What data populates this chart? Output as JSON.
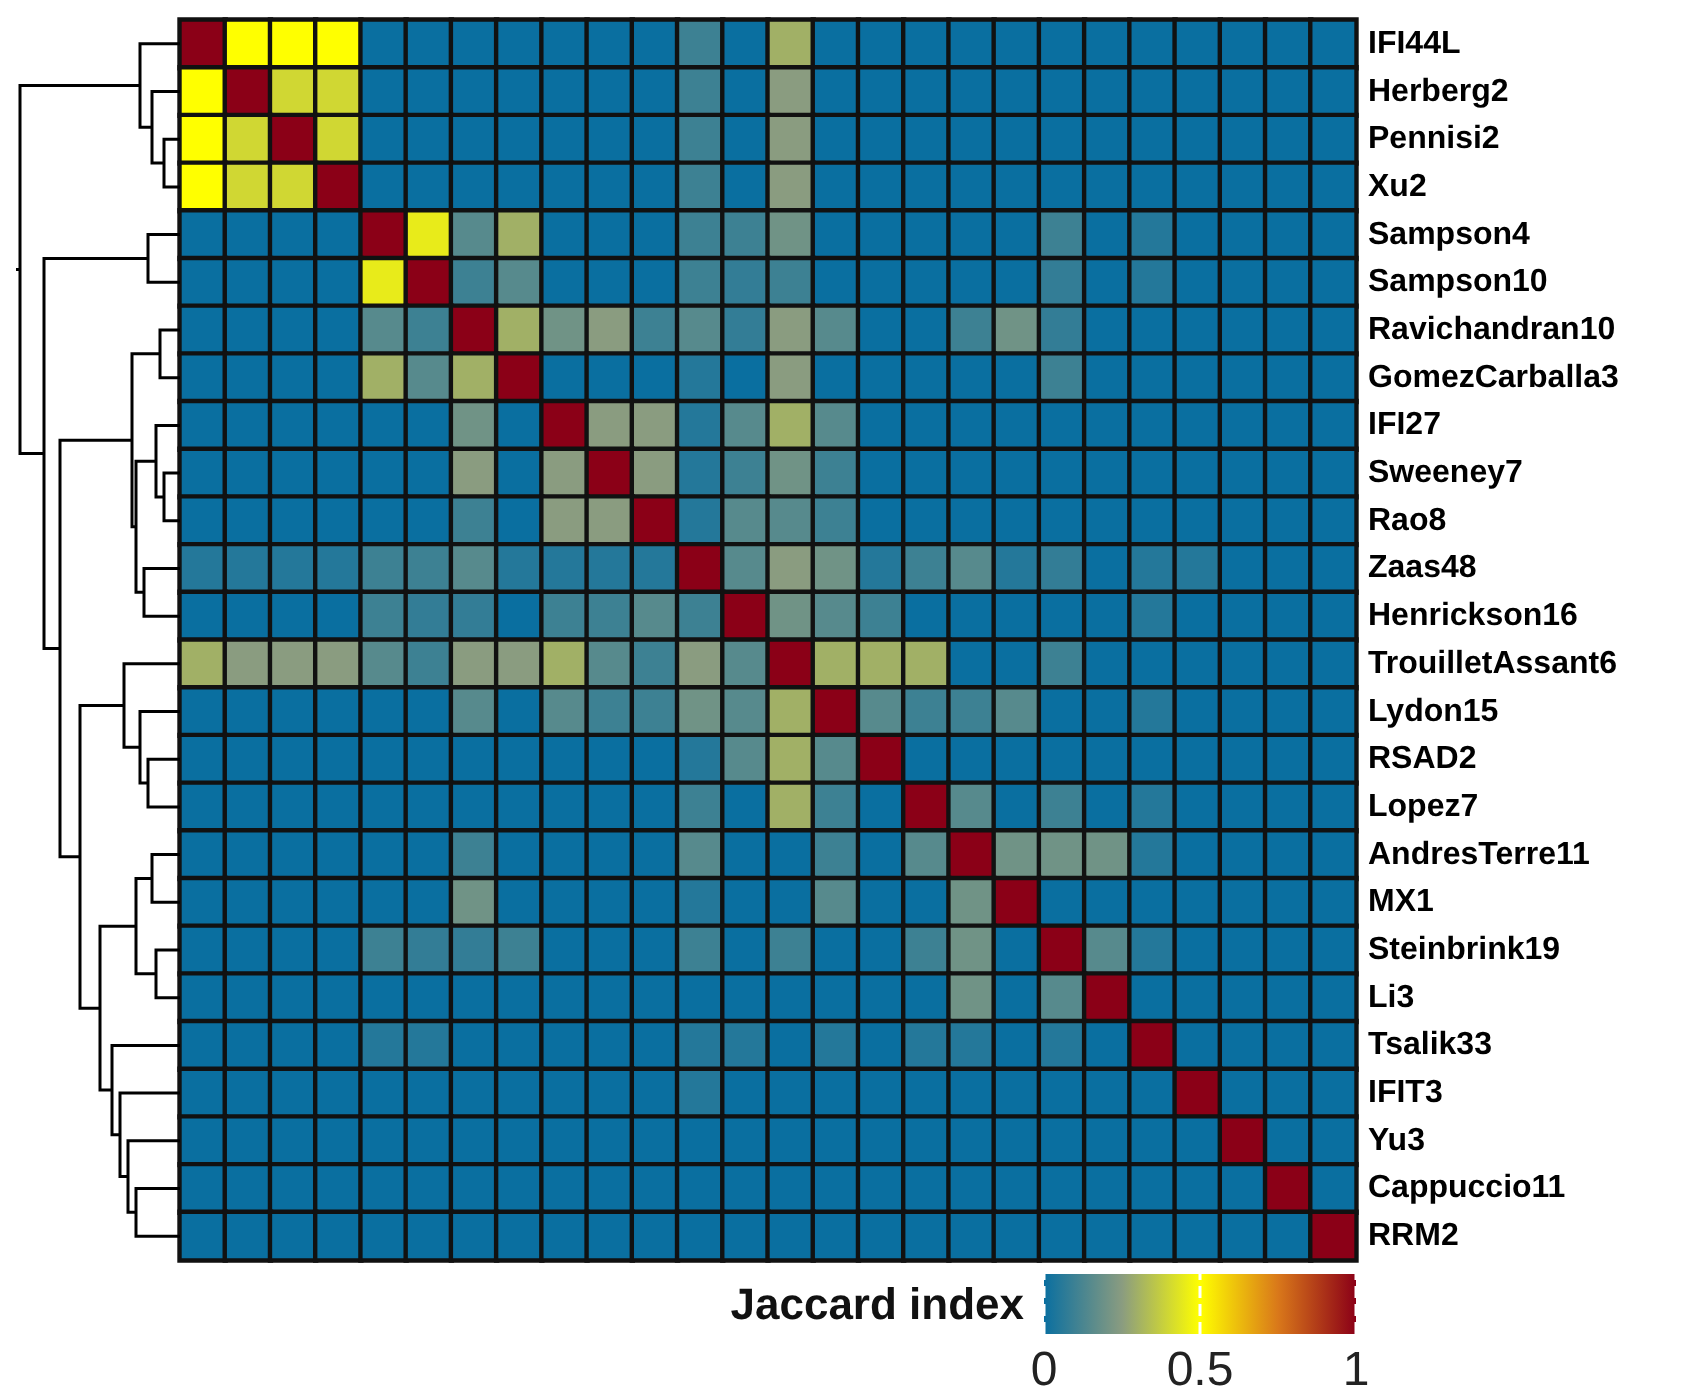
{
  "chart_data": {
    "type": "heatmap",
    "categories": [
      null,
      null,
      null,
      null,
      null,
      null,
      null,
      null,
      null,
      null,
      null,
      null,
      null,
      null,
      null,
      null,
      null,
      null,
      null,
      null,
      null,
      null,
      null,
      null,
      null,
      null
    ],
    "y_categories": [
      "IFI44L",
      "Herberg2",
      "Pennisi2",
      "Xu2",
      "Sampson4",
      "Sampson10",
      "Ravichandran10",
      "GomezCarballa3",
      "IFI27",
      "Sweeney7",
      "Rao8",
      "Zaas48",
      "Henrickson16",
      "TrouilletAssant6",
      "Lydon15",
      "RSAD2",
      "Lopez7",
      "AndresTerre11",
      "MX1",
      "Steinbrink19",
      "Li3",
      "Tsalik33",
      "IFIT3",
      "Yu3",
      "Cappuccio11",
      "RRM2"
    ],
    "cells": [
      [
        1,
        0.5,
        0.5,
        0.5,
        0,
        0,
        0,
        0,
        0,
        0,
        0,
        0.1,
        0,
        0.3,
        0,
        0,
        0,
        0,
        0,
        0,
        0,
        0,
        0,
        0,
        0,
        0
      ],
      [
        0.5,
        1,
        0.4,
        0.4,
        0,
        0,
        0,
        0,
        0,
        0,
        0,
        0.1,
        0,
        0.25,
        0,
        0,
        0,
        0,
        0,
        0,
        0,
        0,
        0,
        0,
        0,
        0
      ],
      [
        0.5,
        0.4,
        1,
        0.4,
        0,
        0,
        0,
        0,
        0,
        0,
        0,
        0.1,
        0,
        0.25,
        0,
        0,
        0,
        0,
        0,
        0,
        0,
        0,
        0,
        0,
        0,
        0
      ],
      [
        0.5,
        0.4,
        0.4,
        1,
        0,
        0,
        0,
        0,
        0,
        0,
        0,
        0.1,
        0,
        0.25,
        0,
        0,
        0,
        0,
        0,
        0,
        0,
        0,
        0,
        0,
        0,
        0
      ],
      [
        0,
        0,
        0,
        0,
        1,
        0.45,
        0.15,
        0.3,
        0,
        0,
        0,
        0.1,
        0.1,
        0.2,
        0,
        0,
        0,
        0,
        0,
        0.1,
        0,
        0.05,
        0,
        0,
        0,
        0
      ],
      [
        0,
        0,
        0,
        0,
        0.45,
        1,
        0.1,
        0.15,
        0,
        0,
        0,
        0.1,
        0.08,
        0.1,
        0,
        0,
        0,
        0,
        0,
        0.08,
        0,
        0.05,
        0,
        0,
        0,
        0
      ],
      [
        0,
        0,
        0,
        0,
        0.15,
        0.1,
        1,
        0.3,
        0.2,
        0.25,
        0.1,
        0.15,
        0.08,
        0.25,
        0.15,
        0,
        0,
        0.1,
        0.2,
        0.08,
        0,
        0,
        0,
        0,
        0,
        0
      ],
      [
        0,
        0,
        0,
        0,
        0.3,
        0.15,
        0.3,
        1,
        0,
        0,
        0,
        0.05,
        0,
        0.25,
        0,
        0,
        0,
        0,
        0,
        0.1,
        0,
        0,
        0,
        0,
        0,
        0
      ],
      [
        0,
        0,
        0,
        0,
        0,
        0,
        0.2,
        0,
        1,
        0.25,
        0.25,
        0.05,
        0.15,
        0.3,
        0.15,
        0,
        0,
        0,
        0,
        0,
        0,
        0,
        0,
        0,
        0,
        0
      ],
      [
        0,
        0,
        0,
        0,
        0,
        0,
        0.25,
        0,
        0.25,
        1,
        0.25,
        0.05,
        0.1,
        0.2,
        0.1,
        0,
        0,
        0,
        0,
        0,
        0,
        0,
        0,
        0,
        0,
        0
      ],
      [
        0,
        0,
        0,
        0,
        0,
        0,
        0.1,
        0,
        0.25,
        0.25,
        1,
        0.05,
        0.15,
        0.15,
        0.1,
        0,
        0,
        0,
        0,
        0,
        0,
        0,
        0,
        0,
        0,
        0
      ],
      [
        0.05,
        0.05,
        0.05,
        0.05,
        0.1,
        0.1,
        0.15,
        0.05,
        0.05,
        0.05,
        0.05,
        1,
        0.15,
        0.25,
        0.2,
        0.05,
        0.1,
        0.15,
        0.05,
        0.08,
        0,
        0.05,
        0.05,
        0,
        0,
        0
      ],
      [
        0,
        0,
        0,
        0,
        0.1,
        0.08,
        0.08,
        0,
        0.1,
        0.1,
        0.15,
        0.1,
        1,
        0.2,
        0.15,
        0.1,
        0,
        0,
        0,
        0,
        0,
        0.05,
        0,
        0,
        0,
        0
      ],
      [
        0.3,
        0.25,
        0.25,
        0.25,
        0.15,
        0.1,
        0.25,
        0.25,
        0.3,
        0.15,
        0.1,
        0.25,
        0.15,
        1,
        0.3,
        0.3,
        0.3,
        0,
        0,
        0.1,
        0,
        0,
        0,
        0,
        0,
        0
      ],
      [
        0,
        0,
        0,
        0,
        0,
        0,
        0.15,
        0,
        0.15,
        0.1,
        0.1,
        0.2,
        0.15,
        0.3,
        1,
        0.15,
        0.1,
        0.1,
        0.15,
        0,
        0,
        0.05,
        0,
        0,
        0,
        0
      ],
      [
        0,
        0,
        0,
        0,
        0,
        0,
        0,
        0,
        0,
        0,
        0,
        0.05,
        0.15,
        0.3,
        0.15,
        1,
        0,
        0,
        0,
        0,
        0,
        0,
        0,
        0,
        0,
        0
      ],
      [
        0,
        0,
        0,
        0,
        0,
        0,
        0,
        0,
        0,
        0,
        0,
        0.1,
        0,
        0.3,
        0.1,
        0,
        1,
        0.15,
        0,
        0.1,
        0,
        0.05,
        0,
        0,
        0,
        0
      ],
      [
        0,
        0,
        0,
        0,
        0,
        0,
        0.1,
        0,
        0,
        0,
        0,
        0.15,
        0,
        0,
        0.1,
        0,
        0.15,
        1,
        0.2,
        0.2,
        0.2,
        0.05,
        0,
        0,
        0,
        0
      ],
      [
        0,
        0,
        0,
        0,
        0,
        0,
        0.2,
        0,
        0,
        0,
        0,
        0.05,
        0,
        0,
        0.15,
        0,
        0,
        0.2,
        1,
        0,
        0,
        0,
        0,
        0,
        0,
        0
      ],
      [
        0,
        0,
        0,
        0,
        0.1,
        0.08,
        0.08,
        0.1,
        0,
        0,
        0,
        0.1,
        0,
        0.1,
        0,
        0,
        0.1,
        0.2,
        0,
        1,
        0.15,
        0.05,
        0,
        0,
        0,
        0
      ],
      [
        0,
        0,
        0,
        0,
        0,
        0,
        0,
        0,
        0,
        0,
        0,
        0,
        0,
        0,
        0,
        0,
        0,
        0.2,
        0,
        0.15,
        1,
        0,
        0,
        0,
        0,
        0
      ],
      [
        0,
        0,
        0,
        0,
        0.05,
        0.05,
        0,
        0,
        0,
        0,
        0,
        0.05,
        0.05,
        0,
        0.05,
        0,
        0.05,
        0.05,
        0,
        0.05,
        0,
        1,
        0,
        0,
        0,
        0
      ],
      [
        0,
        0,
        0,
        0,
        0,
        0,
        0,
        0,
        0,
        0,
        0,
        0.05,
        0,
        0,
        0,
        0,
        0,
        0,
        0,
        0,
        0,
        0,
        1,
        0,
        0,
        0
      ],
      [
        0,
        0,
        0,
        0,
        0,
        0,
        0,
        0,
        0,
        0,
        0,
        0,
        0,
        0,
        0,
        0,
        0,
        0,
        0,
        0,
        0,
        0,
        0,
        1,
        0,
        0
      ],
      [
        0,
        0,
        0,
        0,
        0,
        0,
        0,
        0,
        0,
        0,
        0,
        0,
        0,
        0,
        0,
        0,
        0,
        0,
        0,
        0,
        0,
        0,
        0,
        0,
        1,
        0
      ],
      [
        0,
        0,
        0,
        0,
        0,
        0,
        0,
        0,
        0,
        0,
        0,
        0,
        0,
        0,
        0,
        0,
        0,
        0,
        0,
        0,
        0,
        0,
        0,
        0,
        0,
        1
      ]
    ],
    "clabel": "Jaccard index",
    "clim": [
      0,
      1
    ],
    "cticks": [
      0,
      0.5,
      1
    ],
    "tick_labels": "y"
  }
}
